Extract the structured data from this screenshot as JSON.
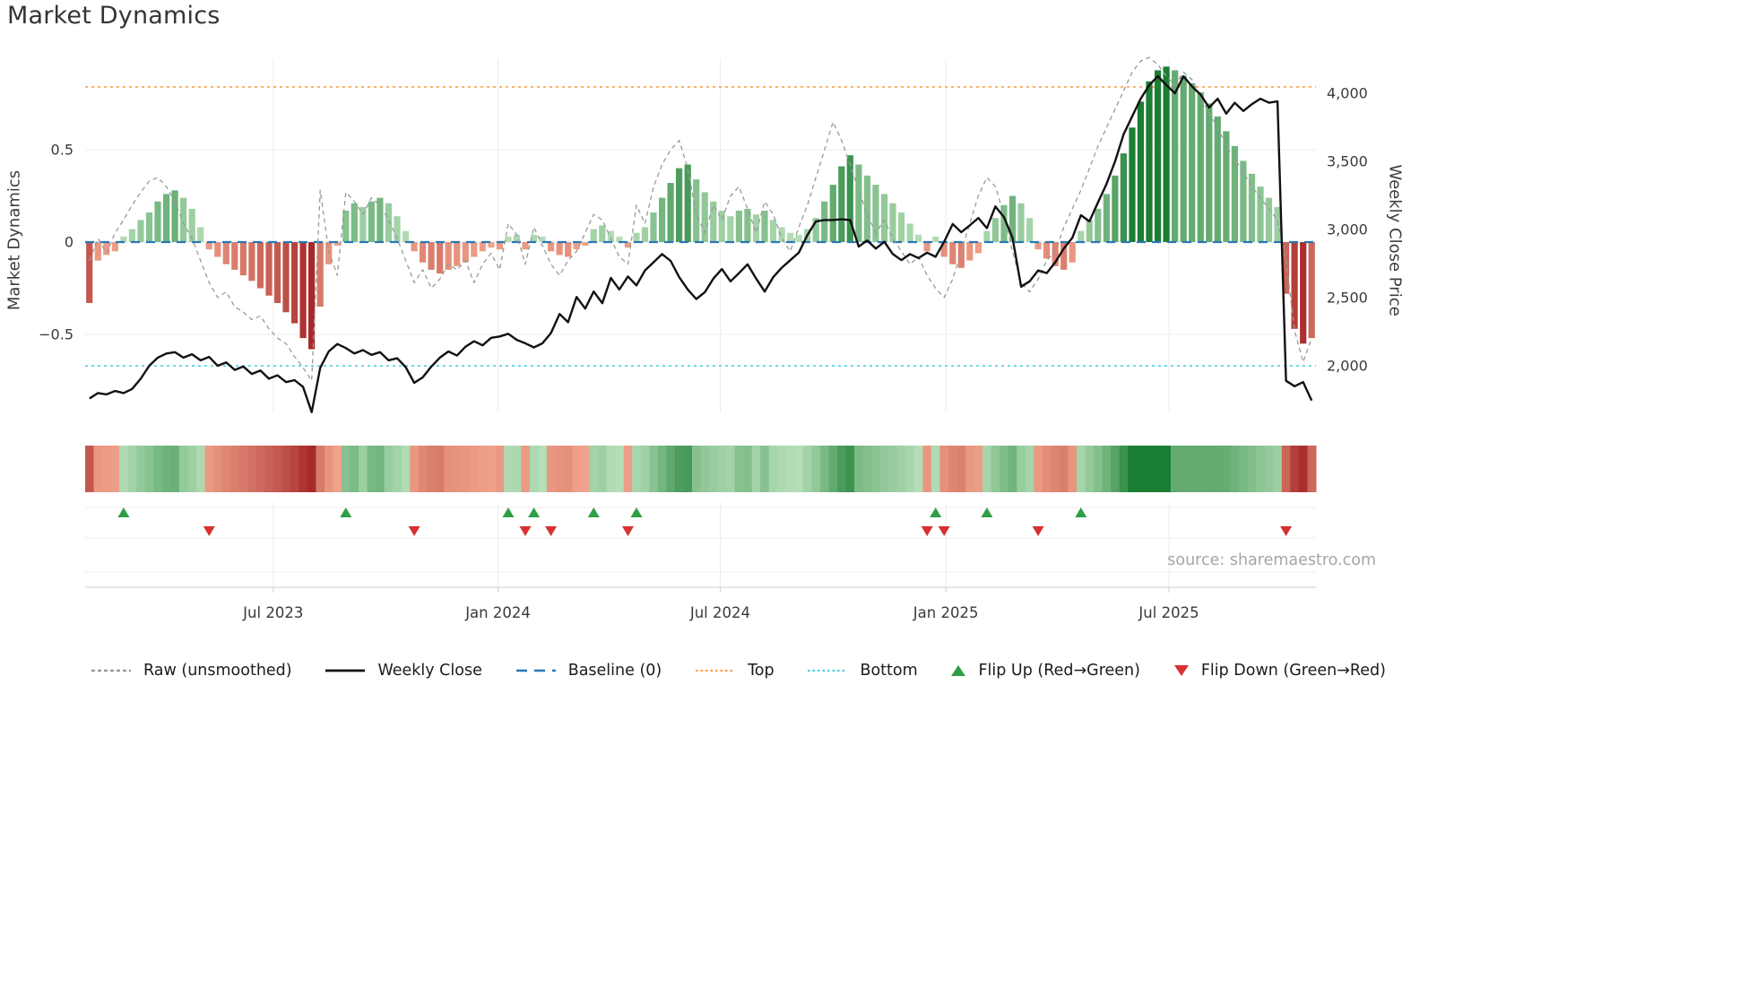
{
  "chart_data": {
    "type": "bar",
    "title": "Market Dynamics",
    "source": "source: sharemaestro.com",
    "n_weeks": 144,
    "x_axis": {
      "ticks": [
        {
          "label": "Jul 2023",
          "week": 22
        },
        {
          "label": "Jan 2024",
          "week": 48.3
        },
        {
          "label": "Jul 2024",
          "week": 74.3
        },
        {
          "label": "Jan 2025",
          "week": 100.7
        },
        {
          "label": "Jul 2025",
          "week": 126.8
        }
      ]
    },
    "left_axis": {
      "label": "Market Dynamics",
      "lim": [
        -0.92,
        1.02
      ],
      "ticks": [
        {
          "value": 0.5,
          "label": "0.5"
        },
        {
          "value": 0,
          "label": "0"
        },
        {
          "value": -0.5,
          "label": "−0.5"
        }
      ]
    },
    "right_axis": {
      "label": "Weekly Close Price",
      "lim": [
        1650,
        4260
      ],
      "ticks": [
        {
          "value": 4000,
          "label": "4,000"
        },
        {
          "value": 3500,
          "label": "3,500"
        },
        {
          "value": 3000,
          "label": "3,000"
        },
        {
          "value": 2500,
          "label": "2,500"
        },
        {
          "value": 2000,
          "label": "2,000"
        }
      ]
    },
    "reference_lines": {
      "baseline": {
        "value": 0,
        "label": "Baseline (0)",
        "color": "#2878b5"
      },
      "top": {
        "value": 0.84,
        "label": "Top",
        "color": "#ff9e42"
      },
      "bottom": {
        "value": -0.67,
        "label": "Bottom",
        "color": "#4dd0e1"
      }
    },
    "series": [
      {
        "name": "Market Dynamics (smoothed bars)",
        "type": "bar",
        "axis": "left",
        "values": [
          -0.33,
          -0.1,
          -0.07,
          -0.05,
          0.03,
          0.07,
          0.12,
          0.16,
          0.22,
          0.26,
          0.28,
          0.24,
          0.18,
          0.08,
          -0.04,
          -0.08,
          -0.12,
          -0.15,
          -0.18,
          -0.21,
          -0.25,
          -0.29,
          -0.33,
          -0.38,
          -0.44,
          -0.52,
          -0.58,
          -0.35,
          -0.12,
          -0.02,
          0.17,
          0.21,
          0.19,
          0.22,
          0.24,
          0.21,
          0.14,
          0.06,
          -0.05,
          -0.11,
          -0.15,
          -0.17,
          -0.15,
          -0.13,
          -0.11,
          -0.08,
          -0.05,
          -0.03,
          -0.04,
          0.03,
          0.04,
          -0.04,
          0.04,
          0.03,
          -0.05,
          -0.07,
          -0.08,
          -0.04,
          -0.02,
          0.07,
          0.09,
          0.06,
          0.03,
          -0.03,
          0.05,
          0.08,
          0.16,
          0.24,
          0.32,
          0.4,
          0.42,
          0.34,
          0.27,
          0.22,
          0.17,
          0.14,
          0.17,
          0.18,
          0.15,
          0.17,
          0.12,
          0.08,
          0.05,
          0.04,
          0.07,
          0.13,
          0.22,
          0.31,
          0.41,
          0.47,
          0.42,
          0.36,
          0.31,
          0.26,
          0.21,
          0.16,
          0.1,
          0.04,
          -0.05,
          0.03,
          -0.08,
          -0.12,
          -0.14,
          -0.1,
          -0.06,
          0.06,
          0.13,
          0.2,
          0.25,
          0.21,
          0.13,
          -0.04,
          -0.09,
          -0.13,
          -0.15,
          -0.11,
          0.06,
          0.12,
          0.18,
          0.26,
          0.36,
          0.48,
          0.62,
          0.76,
          0.87,
          0.93,
          0.95,
          0.93,
          0.9,
          0.86,
          0.81,
          0.75,
          0.68,
          0.6,
          0.52,
          0.44,
          0.37,
          0.3,
          0.24,
          0.19,
          -0.28,
          -0.47,
          -0.55,
          -0.52
        ]
      },
      {
        "name": "Raw (unsmoothed)",
        "type": "line",
        "style": "dashed",
        "axis": "left",
        "color": "#999999",
        "values": [
          -0.1,
          0.02,
          -0.06,
          0.05,
          0.12,
          0.2,
          0.27,
          0.33,
          0.35,
          0.3,
          0.22,
          0.1,
          0.02,
          -0.1,
          -0.22,
          -0.3,
          -0.27,
          -0.35,
          -0.38,
          -0.42,
          -0.4,
          -0.47,
          -0.52,
          -0.55,
          -0.62,
          -0.68,
          -0.75,
          0.28,
          -0.05,
          -0.18,
          0.27,
          0.22,
          0.15,
          0.24,
          0.2,
          0.12,
          0.02,
          -0.1,
          -0.22,
          -0.15,
          -0.25,
          -0.2,
          -0.12,
          -0.15,
          -0.1,
          -0.22,
          -0.12,
          -0.06,
          -0.15,
          0.1,
          0.04,
          -0.12,
          0.08,
          -0.02,
          -0.12,
          -0.18,
          -0.1,
          -0.05,
          0.05,
          0.15,
          0.12,
          0.02,
          -0.08,
          -0.12,
          0.2,
          0.1,
          0.3,
          0.42,
          0.5,
          0.55,
          0.4,
          0.15,
          0.05,
          0.2,
          0.12,
          0.25,
          0.3,
          0.18,
          0.05,
          0.22,
          0.15,
          0.02,
          -0.05,
          0.08,
          0.2,
          0.35,
          0.5,
          0.65,
          0.55,
          0.42,
          0.28,
          0.15,
          0.05,
          0.12,
          0.02,
          -0.05,
          -0.12,
          -0.08,
          -0.18,
          -0.25,
          -0.3,
          -0.2,
          -0.05,
          0.1,
          0.25,
          0.35,
          0.3,
          0.15,
          -0.05,
          -0.22,
          -0.27,
          -0.2,
          -0.1,
          -0.05,
          0.08,
          0.18,
          0.28,
          0.4,
          0.52,
          0.62,
          0.72,
          0.82,
          0.92,
          0.98,
          1.0,
          0.96,
          0.9,
          0.85,
          0.92,
          0.88,
          0.78,
          0.7,
          0.62,
          0.52,
          0.45,
          0.38,
          0.3,
          0.24,
          0.18,
          0.12,
          -0.1,
          -0.48,
          -0.65,
          -0.52
        ]
      },
      {
        "name": "Weekly Close",
        "type": "line",
        "axis": "right",
        "color": "#111111",
        "values": [
          1760,
          1800,
          1790,
          1815,
          1800,
          1830,
          1905,
          2000,
          2060,
          2090,
          2100,
          2060,
          2085,
          2040,
          2065,
          2000,
          2025,
          1970,
          1995,
          1940,
          1965,
          1905,
          1930,
          1880,
          1895,
          1845,
          1660,
          1985,
          2105,
          2160,
          2130,
          2090,
          2115,
          2080,
          2100,
          2040,
          2055,
          1990,
          1875,
          1915,
          1995,
          2060,
          2105,
          2075,
          2140,
          2180,
          2150,
          2205,
          2215,
          2235,
          2190,
          2165,
          2135,
          2165,
          2240,
          2380,
          2320,
          2505,
          2420,
          2545,
          2460,
          2645,
          2560,
          2655,
          2590,
          2700,
          2760,
          2820,
          2770,
          2650,
          2560,
          2490,
          2540,
          2640,
          2710,
          2620,
          2680,
          2745,
          2640,
          2545,
          2650,
          2720,
          2775,
          2830,
          2960,
          3060,
          3070,
          3070,
          3075,
          3070,
          2875,
          2920,
          2860,
          2910,
          2820,
          2775,
          2820,
          2790,
          2830,
          2800,
          2910,
          3040,
          2980,
          3030,
          3085,
          3010,
          3170,
          3090,
          2940,
          2580,
          2620,
          2700,
          2680,
          2760,
          2860,
          2940,
          3105,
          3060,
          3200,
          3335,
          3500,
          3700,
          3830,
          3960,
          4060,
          4125,
          4060,
          4000,
          4125,
          4050,
          3990,
          3895,
          3960,
          3850,
          3930,
          3870,
          3920,
          3960,
          3930,
          3940,
          1890,
          1850,
          1880,
          1745
        ]
      }
    ],
    "markers": {
      "flip_up_weeks": [
        4,
        30,
        49,
        52,
        59,
        64,
        99,
        105,
        116
      ],
      "flip_down_weeks": [
        14,
        38,
        51,
        54,
        63,
        98,
        100,
        111,
        140
      ]
    },
    "colors": {
      "bar_green_dark": "#1a7e33",
      "bar_green_light": "#bce3bd",
      "bar_red_dark": "#a32222",
      "bar_red_light": "#f2a78f",
      "flip_up": "#2f9e44",
      "flip_down": "#d63230",
      "grid": "#ededed",
      "axis_line": "#cfcfcf",
      "tick_text": "#3a3a3a"
    }
  },
  "legend": {
    "items": [
      {
        "label": "Raw (unsmoothed)"
      },
      {
        "label": "Weekly Close"
      },
      {
        "label": "Baseline (0)"
      },
      {
        "label": "Top"
      },
      {
        "label": "Bottom"
      },
      {
        "label": "Flip Up (Red→Green)"
      },
      {
        "label": "Flip Down (Green→Red)"
      }
    ]
  }
}
